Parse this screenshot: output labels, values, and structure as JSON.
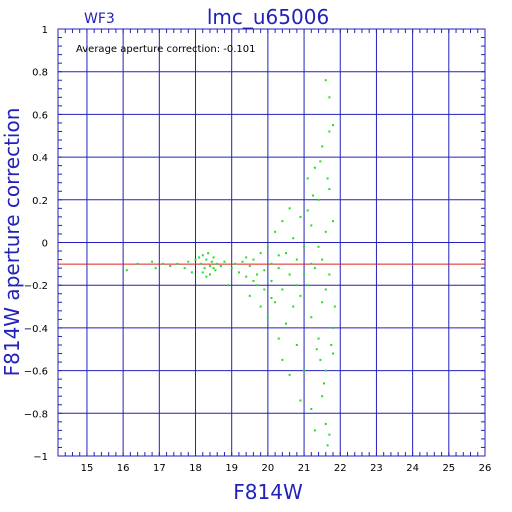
{
  "chart_data": {
    "type": "scatter",
    "title": "lmc_u65006",
    "corner_label": "WF3",
    "annotation": "Average aperture correction:  -0.101",
    "xlabel": "F814W",
    "ylabel": "F814W aperture correction",
    "xlim": [
      14.2,
      26
    ],
    "ylim": [
      -1,
      1
    ],
    "x_ticks": [
      15,
      16,
      17,
      18,
      19,
      20,
      21,
      22,
      23,
      24,
      25,
      26
    ],
    "y_ticks": [
      -1,
      -0.8,
      -0.6,
      -0.4,
      -0.2,
      0,
      0.2,
      0.4,
      0.6,
      0.8,
      1
    ],
    "y_tick_labels": [
      "−1",
      "−0.8",
      "−0.6",
      "−0.4",
      "−0.2",
      "0",
      "0.2",
      "0.4",
      "0.6",
      "0.8",
      "1"
    ],
    "grid": true,
    "reference_line": {
      "y": -0.101,
      "color": "#dd2222"
    },
    "colors": {
      "points": "#22dd22",
      "grid": "#2222bb",
      "frame": "#2222bb",
      "text": "#2222bb"
    },
    "series": [
      {
        "values": [
          [
            16.1,
            -0.13
          ],
          [
            16.4,
            -0.1
          ],
          [
            16.8,
            -0.09
          ],
          [
            16.9,
            -0.12
          ],
          [
            17.1,
            -0.1
          ],
          [
            17.3,
            -0.11
          ],
          [
            17.5,
            -0.1
          ],
          [
            17.7,
            -0.12
          ],
          [
            17.8,
            -0.09
          ],
          [
            17.9,
            -0.14
          ],
          [
            18.0,
            -0.08
          ],
          [
            18.1,
            -0.07
          ],
          [
            18.15,
            -0.1
          ],
          [
            18.2,
            -0.06
          ],
          [
            18.25,
            -0.12
          ],
          [
            18.3,
            -0.08
          ],
          [
            18.35,
            -0.05
          ],
          [
            18.4,
            -0.11
          ],
          [
            18.45,
            -0.09
          ],
          [
            18.5,
            -0.07
          ],
          [
            18.55,
            -0.13
          ],
          [
            18.6,
            -0.1
          ],
          [
            18.2,
            -0.14
          ],
          [
            18.3,
            -0.16
          ],
          [
            18.4,
            -0.15
          ],
          [
            18.5,
            -0.12
          ],
          [
            18.7,
            -0.11
          ],
          [
            18.8,
            -0.09
          ],
          [
            18.9,
            -0.2
          ],
          [
            19.0,
            -0.12
          ],
          [
            19.1,
            -0.1
          ],
          [
            19.2,
            -0.14
          ],
          [
            19.3,
            -0.09
          ],
          [
            19.4,
            -0.16
          ],
          [
            19.5,
            -0.11
          ],
          [
            19.6,
            -0.08
          ],
          [
            19.7,
            -0.15
          ],
          [
            19.8,
            -0.05
          ],
          [
            19.9,
            -0.13
          ],
          [
            20.0,
            -0.02
          ],
          [
            19.5,
            -0.25
          ],
          [
            19.7,
            -0.2
          ],
          [
            19.8,
            -0.3
          ],
          [
            19.9,
            -0.22
          ],
          [
            20.0,
            -0.35
          ],
          [
            20.1,
            -0.1
          ],
          [
            20.1,
            -0.18
          ],
          [
            20.2,
            0.05
          ],
          [
            20.2,
            -0.28
          ],
          [
            20.3,
            -0.12
          ],
          [
            20.3,
            -0.45
          ],
          [
            20.4,
            0.1
          ],
          [
            20.4,
            -0.22
          ],
          [
            20.5,
            -0.05
          ],
          [
            20.5,
            -0.38
          ],
          [
            20.6,
            0.16
          ],
          [
            20.6,
            -0.15
          ],
          [
            20.7,
            -0.3
          ],
          [
            20.7,
            0.02
          ],
          [
            20.8,
            -0.48
          ],
          [
            20.8,
            -0.08
          ],
          [
            20.9,
            0.12
          ],
          [
            20.9,
            -0.25
          ],
          [
            21.0,
            -0.6
          ],
          [
            21.0,
            -0.02
          ],
          [
            21.1,
            -0.2
          ],
          [
            21.1,
            0.3
          ],
          [
            21.2,
            -0.35
          ],
          [
            21.2,
            0.08
          ],
          [
            21.3,
            -0.12
          ],
          [
            21.3,
            0.35
          ],
          [
            21.4,
            -0.45
          ],
          [
            21.4,
            0.2
          ],
          [
            21.5,
            -0.28
          ],
          [
            21.5,
            0.45
          ],
          [
            21.6,
            -0.6
          ],
          [
            21.6,
            0.05
          ],
          [
            21.7,
            -0.15
          ],
          [
            21.7,
            0.25
          ],
          [
            21.8,
            -0.4
          ],
          [
            21.8,
            0.1
          ],
          [
            21.85,
            -0.3
          ],
          [
            21.6,
            0.76
          ],
          [
            21.7,
            0.68
          ],
          [
            21.7,
            0.52
          ],
          [
            21.8,
            0.55
          ],
          [
            21.5,
            -0.72
          ],
          [
            21.6,
            -0.85
          ],
          [
            21.65,
            -0.95
          ],
          [
            21.55,
            -0.66
          ],
          [
            21.2,
            -0.78
          ],
          [
            20.9,
            -0.74
          ],
          [
            20.6,
            -0.62
          ],
          [
            20.4,
            -0.55
          ],
          [
            21.3,
            -0.88
          ],
          [
            21.7,
            -0.9
          ],
          [
            21.4,
            -0.02
          ],
          [
            21.2,
            -0.1
          ],
          [
            21.0,
            -0.15
          ],
          [
            20.8,
            -0.2
          ],
          [
            21.6,
            -0.22
          ],
          [
            21.5,
            -0.08
          ],
          [
            20.3,
            -0.06
          ],
          [
            20.1,
            -0.26
          ],
          [
            19.6,
            -0.18
          ],
          [
            19.4,
            -0.07
          ],
          [
            21.35,
            -0.5
          ],
          [
            21.45,
            -0.55
          ],
          [
            21.1,
            0.15
          ],
          [
            21.25,
            0.22
          ],
          [
            21.45,
            0.38
          ],
          [
            21.65,
            0.3
          ],
          [
            21.75,
            -0.48
          ],
          [
            21.8,
            -0.52
          ]
        ]
      }
    ]
  }
}
